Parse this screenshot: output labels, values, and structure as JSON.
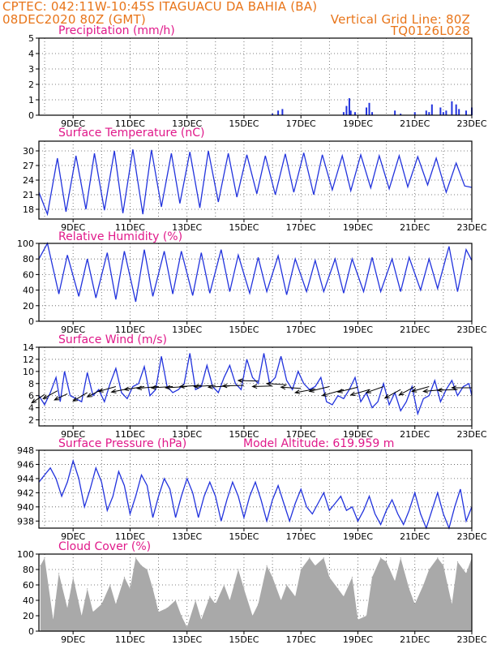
{
  "header": {
    "line1": "CPTEC:   042:11W-10:45S   ITAGUACU DA BAHIA (BA)",
    "line2_left": "08DEC2020 80Z (GMT)",
    "line2_right": "Vertical Grid Line: 80Z",
    "line3_right": "TQ0126L028",
    "color": "#e8751a"
  },
  "title_color": "#e0198a",
  "series_color": "#2233dd",
  "cloud_color": "#a9a9a9",
  "x_ticks": [
    "9DEC",
    "11DEC",
    "13DEC",
    "15DEC",
    "17DEC",
    "19DEC",
    "21DEC",
    "23DEC"
  ],
  "chart_data": [
    {
      "type": "bar",
      "title": "Precipitation (mm/h)",
      "ylim": [
        0,
        5
      ],
      "yticks": [
        "0",
        "1",
        "2",
        "3",
        "4",
        "5"
      ],
      "x_days": [
        16.0,
        16.2,
        16.35,
        18.5,
        18.6,
        18.7,
        18.75,
        18.9,
        19.3,
        19.4,
        19.5,
        20.3,
        20.5,
        21.0,
        21.4,
        21.5,
        21.6,
        21.9,
        22.0,
        22.1,
        22.3,
        22.45,
        22.55,
        22.8,
        23.0
      ],
      "values": [
        0.1,
        0.3,
        0.4,
        0.2,
        0.6,
        1.1,
        0.3,
        0.2,
        0.5,
        0.8,
        0.2,
        0.3,
        0.1,
        0.2,
        0.3,
        0.2,
        0.7,
        0.5,
        0.2,
        0.3,
        0.9,
        0.7,
        0.4,
        0.3,
        0.5
      ]
    },
    {
      "type": "line",
      "title": "Surface Temperature (nC)",
      "ylim": [
        16,
        32
      ],
      "yticks": [
        "18",
        "21",
        "24",
        "27",
        "30"
      ],
      "series": [
        {
          "x": [
            7.8,
            8.1,
            8.45,
            8.75,
            9.1,
            9.45,
            9.75,
            10.1,
            10.45,
            10.75,
            11.1,
            11.45,
            11.75,
            12.1,
            12.45,
            12.75,
            13.1,
            13.45,
            13.75,
            14.1,
            14.45,
            14.75,
            15.1,
            15.45,
            15.75,
            16.1,
            16.45,
            16.75,
            17.1,
            17.45,
            17.75,
            18.1,
            18.45,
            18.75,
            19.1,
            19.45,
            19.75,
            20.1,
            20.45,
            20.75,
            21.1,
            21.45,
            21.75,
            22.1,
            22.45,
            22.75,
            23.0
          ],
          "values": [
            21.5,
            17.0,
            28.5,
            17.5,
            29.0,
            18.0,
            29.5,
            17.8,
            30.0,
            17.2,
            30.3,
            17.0,
            30.2,
            18.5,
            29.5,
            19.2,
            29.8,
            18.3,
            30.0,
            19.5,
            29.5,
            20.5,
            29.2,
            21.2,
            29.0,
            21.0,
            29.4,
            21.5,
            29.6,
            21.0,
            29.2,
            22.0,
            29.0,
            21.8,
            29.2,
            22.4,
            29.0,
            22.2,
            29.0,
            22.6,
            28.8,
            23.0,
            28.5,
            21.5,
            27.5,
            22.8,
            22.5
          ]
        }
      ]
    },
    {
      "type": "line",
      "title": "Relative Humidity (%)",
      "ylim": [
        0,
        100
      ],
      "yticks": [
        "0",
        "20",
        "40",
        "60",
        "80",
        "100"
      ],
      "series": [
        {
          "x": [
            7.8,
            8.1,
            8.5,
            8.8,
            9.2,
            9.5,
            9.8,
            10.2,
            10.5,
            10.8,
            11.2,
            11.5,
            11.8,
            12.2,
            12.5,
            12.8,
            13.2,
            13.5,
            13.8,
            14.2,
            14.5,
            14.8,
            15.2,
            15.5,
            15.8,
            16.2,
            16.5,
            16.8,
            17.2,
            17.5,
            17.8,
            18.2,
            18.5,
            18.8,
            19.2,
            19.5,
            19.8,
            20.2,
            20.5,
            20.8,
            21.2,
            21.5,
            21.8,
            22.2,
            22.5,
            22.8,
            23.0
          ],
          "values": [
            80,
            100,
            35,
            85,
            32,
            80,
            30,
            88,
            28,
            90,
            25,
            92,
            32,
            90,
            35,
            90,
            33,
            88,
            36,
            92,
            38,
            85,
            36,
            82,
            38,
            84,
            34,
            80,
            38,
            78,
            38,
            80,
            36,
            80,
            38,
            82,
            38,
            80,
            38,
            82,
            40,
            80,
            42,
            96,
            38,
            92,
            78
          ]
        }
      ]
    },
    {
      "type": "line",
      "title": "Surface Wind (m/s)",
      "ylim": [
        1,
        14
      ],
      "yticks": [
        "2",
        "4",
        "6",
        "8",
        "10",
        "12",
        "14"
      ],
      "series": [
        {
          "x": [
            7.8,
            8.0,
            8.2,
            8.4,
            8.55,
            8.7,
            8.9,
            9.1,
            9.3,
            9.5,
            9.7,
            9.9,
            10.1,
            10.3,
            10.5,
            10.7,
            10.9,
            11.1,
            11.3,
            11.5,
            11.7,
            11.9,
            12.1,
            12.3,
            12.5,
            12.7,
            12.9,
            13.1,
            13.3,
            13.5,
            13.7,
            13.9,
            14.1,
            14.3,
            14.5,
            14.7,
            14.9,
            15.1,
            15.3,
            15.5,
            15.7,
            15.9,
            16.1,
            16.3,
            16.5,
            16.7,
            16.9,
            17.1,
            17.3,
            17.5,
            17.7,
            17.9,
            18.1,
            18.3,
            18.5,
            18.7,
            18.9,
            19.1,
            19.3,
            19.5,
            19.7,
            19.9,
            20.1,
            20.3,
            20.5,
            20.7,
            20.9,
            21.1,
            21.3,
            21.5,
            21.7,
            21.9,
            22.1,
            22.3,
            22.5,
            22.7,
            22.9,
            23.0
          ],
          "values": [
            6.0,
            4.5,
            6.5,
            9.0,
            5.0,
            10.0,
            6.0,
            5.5,
            5.0,
            9.8,
            6.0,
            7.0,
            5.0,
            8.0,
            10.5,
            6.5,
            5.5,
            7.5,
            8.0,
            10.8,
            6.0,
            7.0,
            12.5,
            7.5,
            6.5,
            7.0,
            8.0,
            13.0,
            7.0,
            7.5,
            11.0,
            7.5,
            6.5,
            9.0,
            11.0,
            8.0,
            7.0,
            12.0,
            9.0,
            8.0,
            13.0,
            8.0,
            9.0,
            12.5,
            8.5,
            7.0,
            10.0,
            8.0,
            7.0,
            7.5,
            9.0,
            5.0,
            4.5,
            6.0,
            5.5,
            7.0,
            9.0,
            5.0,
            6.5,
            4.0,
            5.0,
            8.0,
            4.5,
            6.5,
            3.5,
            5.0,
            7.5,
            3.0,
            5.5,
            6.0,
            8.5,
            5.0,
            7.0,
            8.5,
            6.0,
            7.5,
            8.0,
            6.0
          ]
        }
      ],
      "arrows": [
        {
          "x": 8.0,
          "y": 6.2,
          "dx": -0.45,
          "dy": -1.4
        },
        {
          "x": 8.45,
          "y": 6.8,
          "dx": -0.5,
          "dy": -1.3
        },
        {
          "x": 8.8,
          "y": 6.3,
          "dx": -0.45,
          "dy": -1.0
        },
        {
          "x": 9.5,
          "y": 6.5,
          "dx": -0.5,
          "dy": -1.4
        },
        {
          "x": 10.0,
          "y": 7.0,
          "dx": -0.5,
          "dy": -1.2
        },
        {
          "x": 10.5,
          "y": 7.5,
          "dx": -0.6,
          "dy": -0.8
        },
        {
          "x": 11.0,
          "y": 7.2,
          "dx": -0.65,
          "dy": -0.6
        },
        {
          "x": 11.5,
          "y": 7.5,
          "dx": -0.7,
          "dy": -0.5
        },
        {
          "x": 12.0,
          "y": 7.5,
          "dx": -0.75,
          "dy": -0.3
        },
        {
          "x": 12.5,
          "y": 7.5,
          "dx": -0.75,
          "dy": -0.2
        },
        {
          "x": 13.0,
          "y": 7.5,
          "dx": -0.75,
          "dy": -0.2
        },
        {
          "x": 13.5,
          "y": 7.7,
          "dx": -0.75,
          "dy": -0.2
        },
        {
          "x": 14.0,
          "y": 7.7,
          "dx": -0.75,
          "dy": -0.2
        },
        {
          "x": 14.5,
          "y": 7.6,
          "dx": -0.75,
          "dy": -0.2
        },
        {
          "x": 15.0,
          "y": 7.7,
          "dx": -0.75,
          "dy": -0.1
        },
        {
          "x": 15.5,
          "y": 8.4,
          "dx": -0.7,
          "dy": 0.1
        },
        {
          "x": 16.0,
          "y": 7.6,
          "dx": -0.7,
          "dy": -0.1
        },
        {
          "x": 16.5,
          "y": 7.8,
          "dx": -0.7,
          "dy": 0.2
        },
        {
          "x": 17.0,
          "y": 7.2,
          "dx": -0.7,
          "dy": 0.2
        },
        {
          "x": 17.5,
          "y": 7.1,
          "dx": -0.7,
          "dy": -0.6
        },
        {
          "x": 18.0,
          "y": 7.5,
          "dx": -0.7,
          "dy": -0.8
        },
        {
          "x": 18.5,
          "y": 7.0,
          "dx": -0.75,
          "dy": -1.0
        },
        {
          "x": 19.0,
          "y": 7.4,
          "dx": -0.7,
          "dy": -0.8
        },
        {
          "x": 19.4,
          "y": 7.0,
          "dx": -0.65,
          "dy": -0.9
        },
        {
          "x": 19.9,
          "y": 7.5,
          "dx": -0.6,
          "dy": -1.0
        },
        {
          "x": 20.5,
          "y": 7.0,
          "dx": -0.55,
          "dy": -1.4
        },
        {
          "x": 21.0,
          "y": 7.5,
          "dx": -0.55,
          "dy": -1.4
        },
        {
          "x": 21.5,
          "y": 7.5,
          "dx": -0.6,
          "dy": -0.8
        },
        {
          "x": 22.0,
          "y": 7.0,
          "dx": -0.7,
          "dy": -0.3
        },
        {
          "x": 22.5,
          "y": 7.0,
          "dx": -0.7,
          "dy": -0.1
        },
        {
          "x": 23.0,
          "y": 7.3,
          "dx": -0.7,
          "dy": 0.0
        }
      ]
    },
    {
      "type": "line",
      "title": "Surface Pressure (hPa)",
      "annotation": "Model Altitude: 619.959 m",
      "ylim": [
        937,
        948
      ],
      "yticks": [
        "938",
        "940",
        "942",
        "944",
        "946",
        "948"
      ],
      "series": [
        {
          "x": [
            7.8,
            8.0,
            8.2,
            8.4,
            8.6,
            8.8,
            9.0,
            9.2,
            9.4,
            9.6,
            9.8,
            10.0,
            10.2,
            10.4,
            10.6,
            10.8,
            11.0,
            11.2,
            11.4,
            11.6,
            11.8,
            12.0,
            12.2,
            12.4,
            12.6,
            12.8,
            13.0,
            13.2,
            13.4,
            13.6,
            13.8,
            14.0,
            14.2,
            14.4,
            14.6,
            14.8,
            15.0,
            15.2,
            15.4,
            15.6,
            15.8,
            16.0,
            16.2,
            16.4,
            16.6,
            16.8,
            17.0,
            17.2,
            17.4,
            17.6,
            17.8,
            18.0,
            18.2,
            18.4,
            18.6,
            18.8,
            19.0,
            19.2,
            19.4,
            19.6,
            19.8,
            20.0,
            20.2,
            20.4,
            20.6,
            20.8,
            21.0,
            21.2,
            21.4,
            21.6,
            21.8,
            22.0,
            22.2,
            22.4,
            22.6,
            22.8,
            23.0
          ],
          "values": [
            943.5,
            944.5,
            945.5,
            944.0,
            941.5,
            943.5,
            946.5,
            944.0,
            940.0,
            942.5,
            945.5,
            943.5,
            939.5,
            941.5,
            945.0,
            943.0,
            939.0,
            941.5,
            944.5,
            943.0,
            938.5,
            941.5,
            944.0,
            942.5,
            938.5,
            941.5,
            944.0,
            942.0,
            938.5,
            941.5,
            943.5,
            941.5,
            938.0,
            941.0,
            943.5,
            941.5,
            938.5,
            941.5,
            943.5,
            941.0,
            938.0,
            941.0,
            943.0,
            940.5,
            938.0,
            940.5,
            942.5,
            940.0,
            939.0,
            940.5,
            942.0,
            939.5,
            940.5,
            941.5,
            939.5,
            940.0,
            938.0,
            939.5,
            941.5,
            939.0,
            937.5,
            939.5,
            941.0,
            939.0,
            937.5,
            939.5,
            942.0,
            939.0,
            937.0,
            939.5,
            942.0,
            939.0,
            937.0,
            940.0,
            942.5,
            938.0,
            940.0
          ]
        }
      ]
    },
    {
      "type": "area",
      "title": "Cloud Cover (%)",
      "ylim": [
        0,
        100
      ],
      "yticks": [
        "0",
        "20",
        "40",
        "60",
        "80",
        "100"
      ],
      "series": [
        {
          "x": [
            7.85,
            8.0,
            8.3,
            8.5,
            8.8,
            9.0,
            9.3,
            9.5,
            9.7,
            10.0,
            10.3,
            10.5,
            10.8,
            11.0,
            11.2,
            11.4,
            11.6,
            11.8,
            12.0,
            12.3,
            12.6,
            12.8,
            13.0,
            13.3,
            13.5,
            13.8,
            14.0,
            14.3,
            14.5,
            14.8,
            15.0,
            15.3,
            15.5,
            15.8,
            16.0,
            16.3,
            16.5,
            16.8,
            17.0,
            17.3,
            17.5,
            17.8,
            18.0,
            18.3,
            18.5,
            18.8,
            19.0,
            19.3,
            19.5,
            19.8,
            20.0,
            20.3,
            20.5,
            20.8,
            21.0,
            21.3,
            21.5,
            21.8,
            22.0,
            22.3,
            22.5,
            22.8,
            23.0
          ],
          "values": [
            85,
            95,
            15,
            75,
            30,
            70,
            20,
            55,
            25,
            35,
            60,
            35,
            70,
            55,
            95,
            85,
            80,
            55,
            25,
            30,
            40,
            20,
            5,
            40,
            15,
            45,
            35,
            60,
            40,
            80,
            55,
            20,
            35,
            85,
            70,
            40,
            60,
            45,
            80,
            95,
            85,
            95,
            70,
            55,
            45,
            70,
            15,
            20,
            70,
            95,
            90,
            65,
            95,
            55,
            35,
            60,
            80,
            95,
            85,
            35,
            90,
            75,
            95
          ]
        }
      ]
    }
  ]
}
